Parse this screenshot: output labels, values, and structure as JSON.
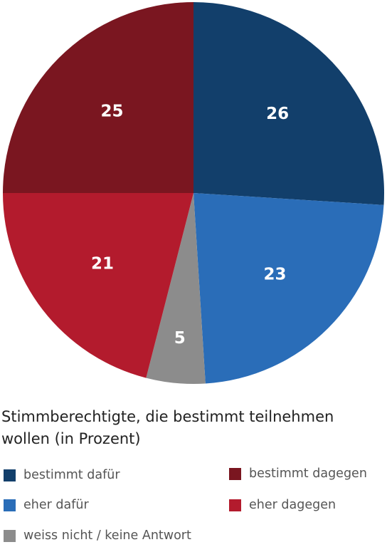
{
  "chart_data": {
    "type": "pie",
    "title": "Stimmberechtigte, die bestimmt teilnehmen wollen (in Prozent)",
    "slices": [
      {
        "label": "bestimmt dafür",
        "value": 26,
        "color": "#123f6b"
      },
      {
        "label": "eher dafür",
        "value": 23,
        "color": "#2a6db8"
      },
      {
        "label": "weiss nicht / keine Antwort",
        "value": 5,
        "color": "#8c8c8c"
      },
      {
        "label": "eher dagegen",
        "value": 21,
        "color": "#b31b2d"
      },
      {
        "label": "bestimmt dagegen",
        "value": 25,
        "color": "#7a1620"
      }
    ],
    "legend_position": "bottom"
  },
  "legend": {
    "items": [
      {
        "label": "bestimmt dafür",
        "color": "#123f6b"
      },
      {
        "label": "bestimmt dagegen",
        "color": "#7a1620"
      },
      {
        "label": "eher dafür",
        "color": "#2a6db8"
      },
      {
        "label": "eher dagegen",
        "color": "#b31b2d"
      },
      {
        "label": "weiss nicht / keine Antwort",
        "color": "#8c8c8c"
      }
    ]
  }
}
